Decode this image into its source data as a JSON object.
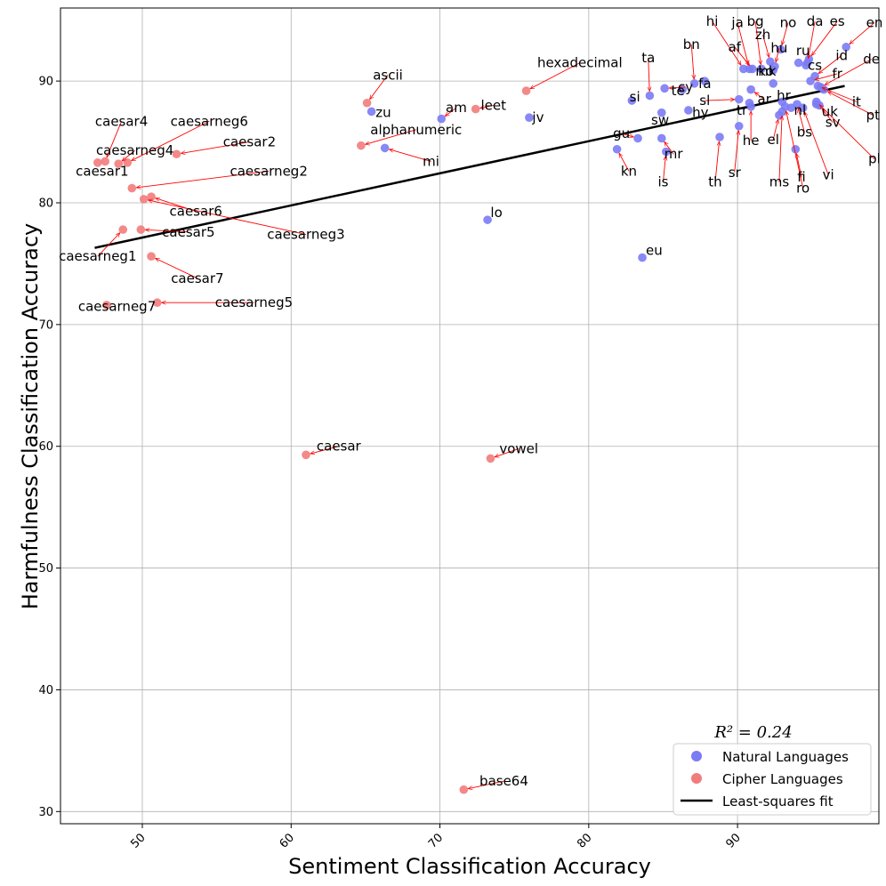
{
  "chart_data": {
    "type": "scatter",
    "xlabel": "Sentiment Classification Accuracy",
    "ylabel": "Harmfulness Classification Accuracy",
    "xlim": [
      44.5,
      99.5
    ],
    "ylim": [
      29,
      96
    ],
    "xticks": [
      50,
      60,
      70,
      80,
      90
    ],
    "yticks": [
      30,
      40,
      50,
      60,
      70,
      80,
      90
    ],
    "xtick_labels": [
      "50",
      "60",
      "70",
      "80",
      "90"
    ],
    "ytick_labels": [
      "30",
      "40",
      "50",
      "60",
      "70",
      "80",
      "90"
    ],
    "grid": true,
    "r2_text": "R² = 0.24",
    "legend": {
      "position": "bottom-right",
      "natural": "Natural Languages",
      "cipher": "Cipher Languages",
      "fit": "Least-squares fit"
    },
    "colors": {
      "natural": "#7b7bf5",
      "cipher": "#f27c7c",
      "arrow": "#ff0000",
      "fit": "#000000"
    },
    "fit_line": {
      "x": [
        46.8,
        97.2
      ],
      "y": [
        76.3,
        89.6
      ]
    },
    "series": [
      {
        "name": "Cipher Languages",
        "points": [
          {
            "label": "caesar4",
            "x": 47.5,
            "y": 83.4,
            "lx": 48.6,
            "ly": 86.7
          },
          {
            "label": "caesarneg6",
            "x": 49.0,
            "y": 83.3,
            "lx": 54.5,
            "ly": 86.7
          },
          {
            "label": "caesarneg4",
            "x": 48.4,
            "y": 83.2,
            "lx": 49.5,
            "ly": 84.3
          },
          {
            "label": "caesar2",
            "x": 52.3,
            "y": 84.0,
            "lx": 57.2,
            "ly": 85.0
          },
          {
            "label": "caesar1",
            "x": 47.0,
            "y": 83.3,
            "lx": 47.3,
            "ly": 82.6
          },
          {
            "label": "caesarneg2",
            "x": 49.3,
            "y": 81.2,
            "lx": 58.5,
            "ly": 82.6
          },
          {
            "label": "caesar6",
            "x": 50.6,
            "y": 80.5,
            "lx": 53.6,
            "ly": 79.3
          },
          {
            "label": "caesarneg3",
            "x": 50.1,
            "y": 80.3,
            "lx": 61.0,
            "ly": 77.4
          },
          {
            "label": "caesar5",
            "x": 49.9,
            "y": 77.8,
            "lx": 53.1,
            "ly": 77.6
          },
          {
            "label": "caesarneg1",
            "x": 48.7,
            "y": 77.8,
            "lx": 47.0,
            "ly": 75.6
          },
          {
            "label": "caesar7",
            "x": 50.6,
            "y": 75.6,
            "lx": 53.7,
            "ly": 73.8
          },
          {
            "label": "caesarneg7",
            "x": 47.6,
            "y": 71.6,
            "lx": 48.3,
            "ly": 71.5
          },
          {
            "label": "caesarneg5",
            "x": 51.0,
            "y": 71.8,
            "lx": 57.5,
            "ly": 71.8
          },
          {
            "label": "ascii",
            "x": 65.1,
            "y": 88.2,
            "lx": 66.5,
            "ly": 90.5
          },
          {
            "label": "hexadecimal",
            "x": 75.8,
            "y": 89.2,
            "lx": 79.4,
            "ly": 91.5
          },
          {
            "label": "leet",
            "x": 72.4,
            "y": 87.7,
            "lx": 73.6,
            "ly": 88.0
          },
          {
            "label": "alphanumeric",
            "x": 64.7,
            "y": 84.7,
            "lx": 68.4,
            "ly": 86.0
          },
          {
            "label": "caesar",
            "x": 61.0,
            "y": 59.3,
            "lx": 63.2,
            "ly": 60.0
          },
          {
            "label": "vowel",
            "x": 73.4,
            "y": 59.0,
            "lx": 75.3,
            "ly": 59.8
          },
          {
            "label": "base64",
            "x": 71.6,
            "y": 31.8,
            "lx": 74.3,
            "ly": 32.5
          }
        ]
      },
      {
        "name": "Natural Languages",
        "points": [
          {
            "label": "zu",
            "x": 65.4,
            "y": 87.5,
            "lx": 66.2,
            "ly": 87.4
          },
          {
            "label": "am",
            "x": 70.1,
            "y": 86.9,
            "lx": 71.1,
            "ly": 87.8
          },
          {
            "label": "jv",
            "x": 76.0,
            "y": 87.0,
            "lx": 76.6,
            "ly": 87.0
          },
          {
            "label": "mi",
            "x": 66.3,
            "y": 84.5,
            "lx": 69.4,
            "ly": 83.4
          },
          {
            "label": "lo",
            "x": 73.2,
            "y": 78.6,
            "lx": 73.8,
            "ly": 79.2
          },
          {
            "label": "eu",
            "x": 83.6,
            "y": 75.5,
            "lx": 84.4,
            "ly": 76.1
          },
          {
            "label": "ta",
            "x": 84.1,
            "y": 88.8,
            "lx": 84.0,
            "ly": 91.9
          },
          {
            "label": "si",
            "x": 82.9,
            "y": 88.4,
            "lx": 83.1,
            "ly": 88.7
          },
          {
            "label": "cy",
            "x": 85.1,
            "y": 89.4,
            "lx": 86.5,
            "ly": 89.5
          },
          {
            "label": "te",
            "x": 86.3,
            "y": 89.3,
            "lx": 86.0,
            "ly": 89.2
          },
          {
            "label": "fa",
            "x": 87.8,
            "y": 90.0,
            "lx": 87.8,
            "ly": 89.8
          },
          {
            "label": "bn",
            "x": 87.1,
            "y": 89.8,
            "lx": 86.9,
            "ly": 93.0
          },
          {
            "label": "sw",
            "x": 84.9,
            "y": 87.4,
            "lx": 84.8,
            "ly": 86.8
          },
          {
            "label": "hy",
            "x": 86.7,
            "y": 87.6,
            "lx": 87.5,
            "ly": 87.4
          },
          {
            "label": "gu",
            "x": 83.3,
            "y": 85.3,
            "lx": 82.2,
            "ly": 85.7
          },
          {
            "label": "kn",
            "x": 81.9,
            "y": 84.4,
            "lx": 82.7,
            "ly": 82.6
          },
          {
            "label": "mr",
            "x": 84.9,
            "y": 85.3,
            "lx": 85.7,
            "ly": 84.0
          },
          {
            "label": "is",
            "x": 85.2,
            "y": 84.2,
            "lx": 85.0,
            "ly": 81.7
          },
          {
            "label": "th",
            "x": 88.8,
            "y": 85.4,
            "lx": 88.5,
            "ly": 81.7
          },
          {
            "label": "sr",
            "x": 90.1,
            "y": 86.3,
            "lx": 89.8,
            "ly": 82.5
          },
          {
            "label": "he",
            "x": 90.9,
            "y": 87.9,
            "lx": 90.9,
            "ly": 85.1
          },
          {
            "label": "sl",
            "x": 90.1,
            "y": 88.5,
            "lx": 87.8,
            "ly": 88.4
          },
          {
            "label": "tr",
            "x": 90.8,
            "y": 88.2,
            "lx": 90.3,
            "ly": 87.6
          },
          {
            "label": "ar",
            "x": 90.9,
            "y": 89.3,
            "lx": 91.8,
            "ly": 88.5
          },
          {
            "label": "hr",
            "x": 93.0,
            "y": 88.3,
            "lx": 93.1,
            "ly": 88.8
          },
          {
            "label": "el",
            "x": 92.8,
            "y": 87.2,
            "lx": 92.4,
            "ly": 85.2
          },
          {
            "label": "nl",
            "x": 93.6,
            "y": 87.8,
            "lx": 94.2,
            "ly": 87.6
          },
          {
            "label": "bs",
            "x": 94.0,
            "y": 88.1,
            "lx": 94.5,
            "ly": 85.8
          },
          {
            "label": "ms",
            "x": 93.0,
            "y": 87.5,
            "lx": 92.8,
            "ly": 81.7
          },
          {
            "label": "fi",
            "x": 93.9,
            "y": 84.4,
            "lx": 94.3,
            "ly": 82.1
          },
          {
            "label": "ro",
            "x": 93.2,
            "y": 87.9,
            "lx": 94.4,
            "ly": 81.2
          },
          {
            "label": "vi",
            "x": 94.4,
            "y": 87.8,
            "lx": 96.1,
            "ly": 82.3
          },
          {
            "label": "uk",
            "x": 95.3,
            "y": 88.1,
            "lx": 96.2,
            "ly": 87.5
          },
          {
            "label": "sv",
            "x": 95.5,
            "y": 88.0,
            "lx": 96.4,
            "ly": 86.6
          },
          {
            "label": "pl",
            "x": 95.3,
            "y": 88.3,
            "lx": 99.2,
            "ly": 83.6
          },
          {
            "label": "pt",
            "x": 95.8,
            "y": 89.3,
            "lx": 99.1,
            "ly": 87.2
          },
          {
            "label": "it",
            "x": 95.4,
            "y": 89.6,
            "lx": 98.0,
            "ly": 88.3
          },
          {
            "label": "fr",
            "x": 94.9,
            "y": 90.0,
            "lx": 96.7,
            "ly": 90.6
          },
          {
            "label": "de",
            "x": 95.6,
            "y": 89.5,
            "lx": 99.0,
            "ly": 91.8
          },
          {
            "label": "id",
            "x": 95.2,
            "y": 90.4,
            "lx": 97.0,
            "ly": 92.1
          },
          {
            "label": "cs",
            "x": 94.6,
            "y": 91.3,
            "lx": 95.2,
            "ly": 91.3
          },
          {
            "label": "ru",
            "x": 94.1,
            "y": 91.5,
            "lx": 94.4,
            "ly": 92.5
          },
          {
            "label": "es",
            "x": 94.8,
            "y": 91.8,
            "lx": 96.7,
            "ly": 94.9
          },
          {
            "label": "da",
            "x": 94.7,
            "y": 91.5,
            "lx": 95.2,
            "ly": 94.9
          },
          {
            "label": "en",
            "x": 97.3,
            "y": 92.8,
            "lx": 99.2,
            "ly": 94.8
          },
          {
            "label": "no",
            "x": 92.9,
            "y": 92.6,
            "lx": 93.4,
            "ly": 94.8
          },
          {
            "label": "hu",
            "x": 92.5,
            "y": 91.2,
            "lx": 92.8,
            "ly": 92.7
          },
          {
            "label": "zh",
            "x": 92.2,
            "y": 91.6,
            "lx": 91.7,
            "ly": 93.8
          },
          {
            "label": "bg",
            "x": 91.6,
            "y": 91.0,
            "lx": 91.2,
            "ly": 94.9
          },
          {
            "label": "ja",
            "x": 90.8,
            "y": 91.0,
            "lx": 90.0,
            "ly": 94.8
          },
          {
            "label": "hi",
            "x": 90.4,
            "y": 91.0,
            "lx": 88.3,
            "ly": 94.9
          },
          {
            "label": "af",
            "x": 91.0,
            "y": 91.0,
            "lx": 89.8,
            "ly": 92.8
          },
          {
            "label": "ko",
            "x": 92.4,
            "y": 90.9,
            "lx": 91.9,
            "ly": 90.8
          },
          {
            "label": "mk",
            "x": 92.4,
            "y": 89.8,
            "lx": 91.9,
            "ly": 90.8
          }
        ]
      }
    ]
  }
}
